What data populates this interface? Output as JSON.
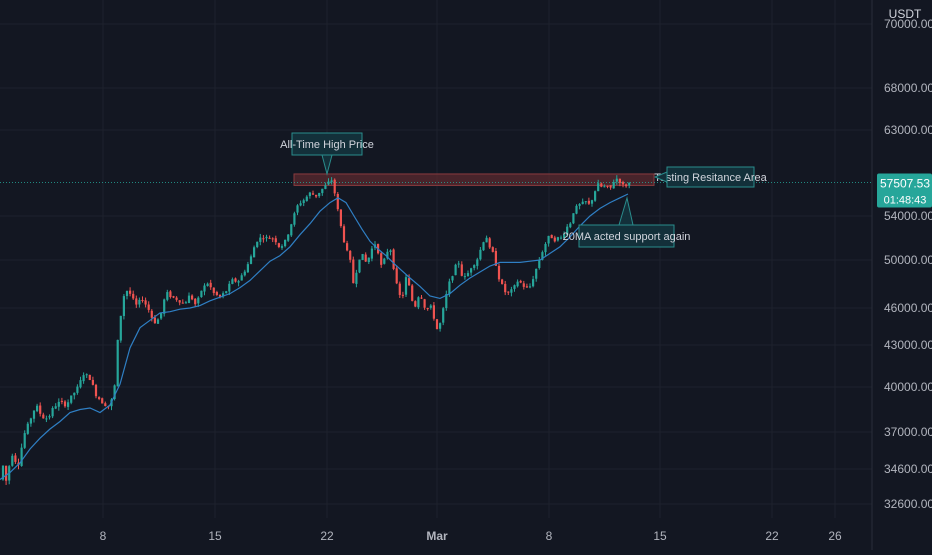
{
  "theme": {
    "background": "#131722",
    "grid": "#1e222d",
    "axis_text": "#b2b5be",
    "up": "#26a69a",
    "down": "#ef5350",
    "ma": "#2f7fc4",
    "resistance_fill": "#5b2a2f",
    "price_line": "#26a69a",
    "callout_fill": "#13303a",
    "callout_border": "#2a8c8c"
  },
  "chart_data": {
    "type": "candlestick",
    "currency": "USDT",
    "y_ticks": [
      "70000.00",
      "68000.00",
      "63000.00",
      "57507.53",
      "54000.00",
      "50000.00",
      "46000.00",
      "43000.00",
      "40000.00",
      "37000.00",
      "34600.00",
      "32600.00"
    ],
    "last_price_label": "57507.53",
    "countdown_label": "01:48:43",
    "x_tick_labels": [
      "8",
      "15",
      "22",
      "Mar",
      "8",
      "15",
      "22",
      "26"
    ],
    "annotations": {
      "ath": "All-Time High Price",
      "resistance": "Testing Resitance Area",
      "support": "20MA acted support again"
    },
    "resistance_zone": [
      57200,
      58400
    ],
    "last_price": 57507.53,
    "price_series": [
      [
        0,
        34000
      ],
      [
        3,
        34800
      ],
      [
        6,
        33900
      ],
      [
        12,
        35600
      ],
      [
        18,
        34800
      ],
      [
        24,
        36800
      ],
      [
        30,
        37800
      ],
      [
        36,
        38800
      ],
      [
        42,
        38000
      ],
      [
        48,
        37900
      ],
      [
        54,
        38700
      ],
      [
        60,
        39000
      ],
      [
        66,
        38800
      ],
      [
        72,
        39400
      ],
      [
        78,
        40000
      ],
      [
        84,
        41000
      ],
      [
        90,
        40600
      ],
      [
        96,
        39500
      ],
      [
        102,
        39000
      ],
      [
        108,
        38700
      ],
      [
        114,
        39400
      ],
      [
        117,
        42800
      ],
      [
        120,
        45000
      ],
      [
        125,
        47600
      ],
      [
        130,
        47200
      ],
      [
        136,
        46200
      ],
      [
        142,
        46800
      ],
      [
        148,
        46000
      ],
      [
        154,
        44800
      ],
      [
        160,
        45200
      ],
      [
        166,
        47300
      ],
      [
        172,
        46900
      ],
      [
        178,
        46700
      ],
      [
        184,
        46300
      ],
      [
        190,
        47100
      ],
      [
        196,
        46200
      ],
      [
        202,
        47600
      ],
      [
        208,
        48100
      ],
      [
        214,
        47200
      ],
      [
        220,
        46900
      ],
      [
        226,
        47400
      ],
      [
        232,
        48300
      ],
      [
        238,
        48200
      ],
      [
        244,
        49000
      ],
      [
        250,
        50000
      ],
      [
        256,
        51700
      ],
      [
        262,
        52100
      ],
      [
        268,
        52000
      ],
      [
        274,
        52000
      ],
      [
        280,
        51100
      ],
      [
        286,
        51800
      ],
      [
        292,
        53500
      ],
      [
        298,
        55200
      ],
      [
        304,
        55700
      ],
      [
        310,
        56400
      ],
      [
        316,
        56100
      ],
      [
        322,
        56800
      ],
      [
        328,
        57400
      ],
      [
        331,
        58000
      ],
      [
        334,
        56800
      ],
      [
        338,
        54500
      ],
      [
        342,
        52500
      ],
      [
        346,
        51000
      ],
      [
        350,
        50000
      ],
      [
        354,
        47700
      ],
      [
        358,
        50000
      ],
      [
        362,
        50500
      ],
      [
        366,
        49800
      ],
      [
        370,
        50400
      ],
      [
        374,
        51700
      ],
      [
        378,
        50800
      ],
      [
        382,
        49200
      ],
      [
        386,
        50600
      ],
      [
        390,
        51200
      ],
      [
        394,
        49200
      ],
      [
        398,
        47300
      ],
      [
        402,
        46700
      ],
      [
        406,
        48500
      ],
      [
        410,
        47600
      ],
      [
        414,
        45800
      ],
      [
        418,
        47000
      ],
      [
        422,
        46900
      ],
      [
        426,
        45700
      ],
      [
        430,
        46300
      ],
      [
        434,
        45200
      ],
      [
        438,
        44000
      ],
      [
        442,
        45400
      ],
      [
        446,
        47000
      ],
      [
        450,
        48300
      ],
      [
        454,
        49100
      ],
      [
        458,
        50000
      ],
      [
        462,
        48700
      ],
      [
        466,
        48500
      ],
      [
        470,
        49300
      ],
      [
        474,
        49700
      ],
      [
        478,
        50200
      ],
      [
        482,
        51400
      ],
      [
        486,
        52300
      ],
      [
        490,
        50900
      ],
      [
        494,
        50500
      ],
      [
        498,
        48700
      ],
      [
        502,
        47900
      ],
      [
        506,
        47200
      ],
      [
        510,
        47300
      ],
      [
        514,
        47700
      ],
      [
        518,
        48300
      ],
      [
        522,
        48000
      ],
      [
        526,
        47600
      ],
      [
        530,
        47800
      ],
      [
        534,
        48700
      ],
      [
        538,
        49700
      ],
      [
        542,
        50700
      ],
      [
        546,
        51600
      ],
      [
        550,
        52300
      ],
      [
        554,
        51800
      ],
      [
        558,
        52000
      ],
      [
        562,
        52000
      ],
      [
        566,
        52900
      ],
      [
        570,
        53300
      ],
      [
        574,
        54600
      ],
      [
        578,
        55100
      ],
      [
        582,
        55300
      ],
      [
        586,
        55500
      ],
      [
        590,
        55100
      ],
      [
        594,
        56400
      ],
      [
        598,
        57300
      ],
      [
        602,
        57000
      ],
      [
        606,
        57100
      ],
      [
        610,
        56800
      ],
      [
        614,
        57700
      ],
      [
        618,
        58000
      ],
      [
        622,
        57200
      ],
      [
        626,
        57200
      ],
      [
        630,
        57500
      ]
    ],
    "ma_series": [
      [
        0,
        34000
      ],
      [
        10,
        34400
      ],
      [
        20,
        35000
      ],
      [
        30,
        35900
      ],
      [
        40,
        36600
      ],
      [
        50,
        37200
      ],
      [
        60,
        37700
      ],
      [
        70,
        38300
      ],
      [
        80,
        38500
      ],
      [
        90,
        38600
      ],
      [
        100,
        38300
      ],
      [
        110,
        38800
      ],
      [
        120,
        40200
      ],
      [
        130,
        42800
      ],
      [
        140,
        44400
      ],
      [
        150,
        45000
      ],
      [
        160,
        45600
      ],
      [
        170,
        45700
      ],
      [
        180,
        45900
      ],
      [
        190,
        46000
      ],
      [
        200,
        46200
      ],
      [
        210,
        46600
      ],
      [
        220,
        46900
      ],
      [
        230,
        47200
      ],
      [
        240,
        47700
      ],
      [
        250,
        48300
      ],
      [
        260,
        49100
      ],
      [
        270,
        49900
      ],
      [
        280,
        50400
      ],
      [
        290,
        51200
      ],
      [
        300,
        52300
      ],
      [
        310,
        53300
      ],
      [
        320,
        54500
      ],
      [
        330,
        55400
      ],
      [
        338,
        55900
      ],
      [
        346,
        55400
      ],
      [
        354,
        54000
      ],
      [
        362,
        52800
      ],
      [
        370,
        51700
      ],
      [
        378,
        51000
      ],
      [
        386,
        50400
      ],
      [
        394,
        49700
      ],
      [
        402,
        49100
      ],
      [
        410,
        48500
      ],
      [
        420,
        47800
      ],
      [
        430,
        47000
      ],
      [
        440,
        46800
      ],
      [
        450,
        47200
      ],
      [
        460,
        47900
      ],
      [
        470,
        48500
      ],
      [
        480,
        49000
      ],
      [
        490,
        49500
      ],
      [
        500,
        49800
      ],
      [
        510,
        49800
      ],
      [
        520,
        49800
      ],
      [
        530,
        49900
      ],
      [
        540,
        50000
      ],
      [
        550,
        50600
      ],
      [
        560,
        51200
      ],
      [
        570,
        52100
      ],
      [
        580,
        53100
      ],
      [
        590,
        54000
      ],
      [
        600,
        54800
      ],
      [
        610,
        55400
      ],
      [
        620,
        55900
      ],
      [
        628,
        56300
      ]
    ],
    "ath_price": 58200,
    "ath_x": 327,
    "support_point": [
      627,
      56200
    ]
  }
}
